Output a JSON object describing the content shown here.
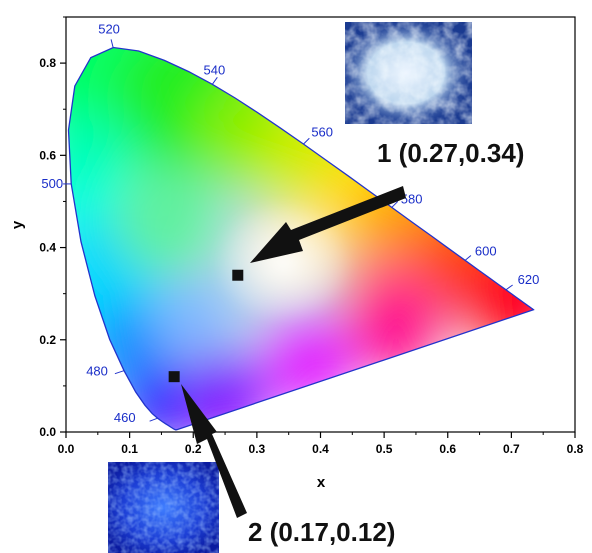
{
  "chart_data": {
    "type": "scatter",
    "xlabel": "x",
    "ylabel": "y",
    "xlim": [
      0.0,
      0.8
    ],
    "ylim": [
      0.0,
      0.9
    ],
    "x_ticks": [
      0.0,
      0.1,
      0.2,
      0.3,
      0.4,
      0.5,
      0.6,
      0.7,
      0.8
    ],
    "y_ticks": [
      0.0,
      0.2,
      0.4,
      0.6,
      0.8
    ],
    "x_tick_labels": [
      "0.0",
      "0.1",
      "0.2",
      "0.3",
      "0.4",
      "0.5",
      "0.6",
      "0.7",
      "0.8"
    ],
    "y_tick_labels": [
      "0.0",
      "0.2",
      "0.4",
      "0.6",
      "0.8"
    ],
    "grid": false,
    "background": "CIE 1931 chromaticity diagram",
    "wavelength_labels": [
      {
        "text": "460",
        "x": 0.144,
        "y": 0.03
      },
      {
        "text": "480",
        "x": 0.091,
        "y": 0.133
      },
      {
        "text": "500",
        "x": 0.008,
        "y": 0.538
      },
      {
        "text": "520",
        "x": 0.074,
        "y": 0.834
      },
      {
        "text": "540",
        "x": 0.23,
        "y": 0.754
      },
      {
        "text": "560",
        "x": 0.373,
        "y": 0.624
      },
      {
        "text": "580",
        "x": 0.512,
        "y": 0.487
      },
      {
        "text": "600",
        "x": 0.627,
        "y": 0.372
      },
      {
        "text": "620",
        "x": 0.691,
        "y": 0.308
      }
    ],
    "points": [
      {
        "id": "1",
        "x": 0.27,
        "y": 0.34,
        "label": "1 (0.27,0.34)"
      },
      {
        "id": "2",
        "x": 0.17,
        "y": 0.12,
        "label": "2 (0.17,0.12)"
      }
    ],
    "colors": {
      "locus": "#2233cc",
      "marker": "#111111",
      "wavelength_text": "#1a2ec8",
      "photo_bright": "#dfeef8",
      "photo_blue": "#1d3fd6"
    },
    "insets": [
      {
        "name": "sample-1-photo",
        "description": "white glowing powder on blue"
      },
      {
        "name": "sample-2-photo",
        "description": "blue glowing powder"
      }
    ]
  }
}
